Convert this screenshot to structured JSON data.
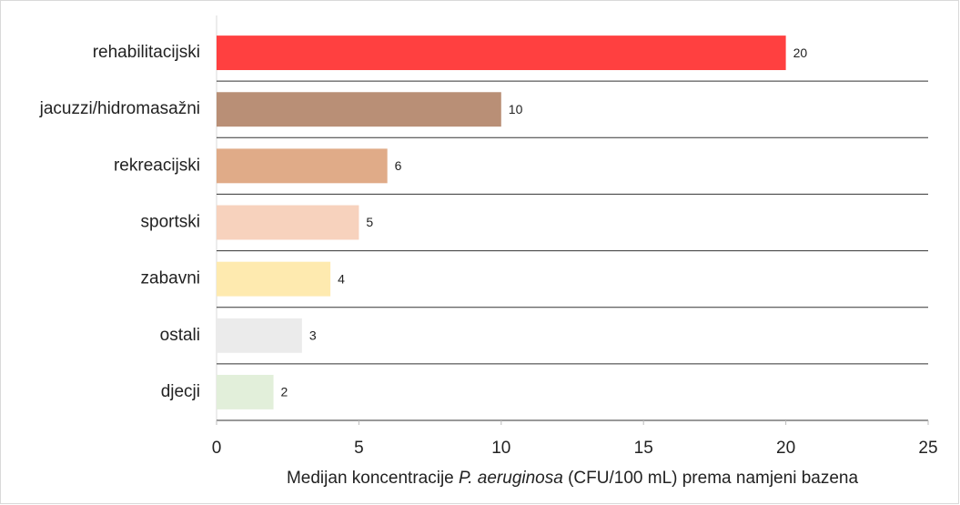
{
  "chart_data": {
    "type": "hbar",
    "categories": [
      "rehabilitacijski",
      "jacuzzi/hidromasažni",
      "rekreacijski",
      "sportski",
      "zabavni",
      "ostali",
      "djecji"
    ],
    "values": [
      20,
      10,
      6,
      5,
      4,
      3,
      2
    ],
    "colors": [
      "#ff4040",
      "#b98f76",
      "#e0ab88",
      "#f7d2bd",
      "#feeaaf",
      "#ebebeb",
      "#e2efda"
    ],
    "xlim": [
      0,
      25
    ],
    "xticks": [
      0,
      5,
      10,
      15,
      20,
      25
    ],
    "xlabel_parts": [
      "Medijan koncentracije ",
      "P. aeruginosa",
      " (CFU/100 mL) prema namjeni bazena"
    ],
    "xlabel_italic": [
      false,
      true,
      false
    ],
    "data_labels": true
  }
}
